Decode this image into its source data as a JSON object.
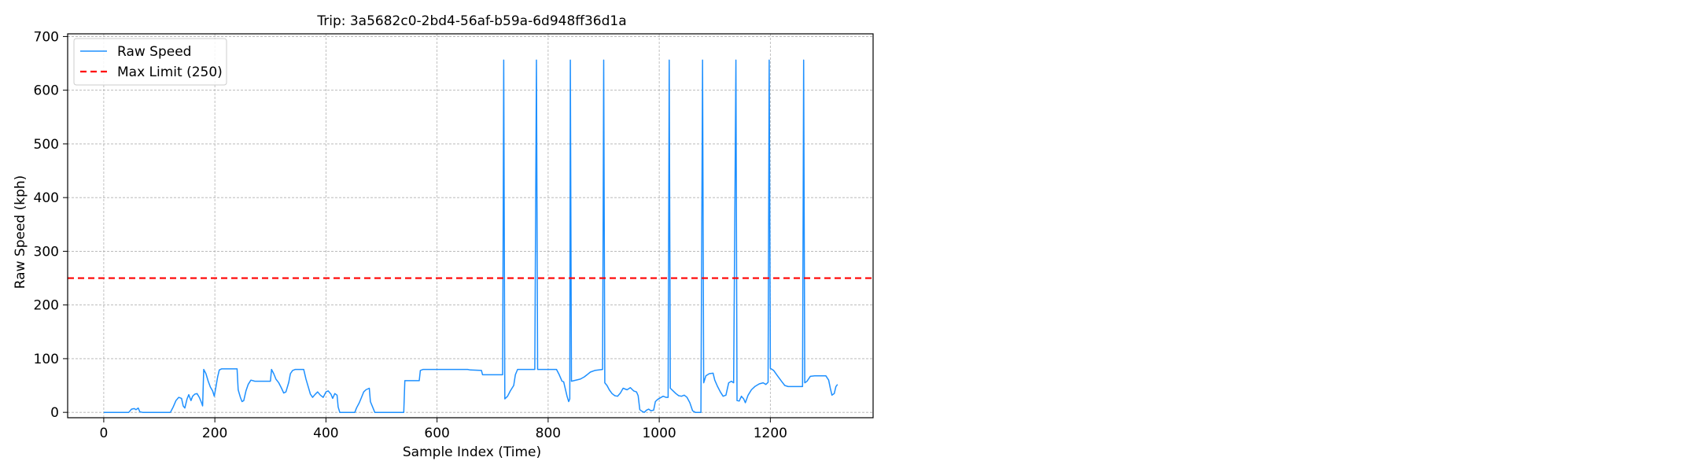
{
  "chart_data": {
    "type": "line",
    "title": "Trip: 3a5682c0-2bd4-56af-b59a-6d948ff36d1a",
    "xlabel": "Sample Index (Time)",
    "ylabel": "Raw Speed (kph)",
    "xlim": [
      -65,
      1385
    ],
    "ylim": [
      -10,
      705
    ],
    "xticks": [
      0,
      200,
      400,
      600,
      800,
      1000,
      1200
    ],
    "yticks": [
      0,
      100,
      200,
      300,
      400,
      500,
      600,
      700
    ],
    "grid": true,
    "legend_position": "top-left",
    "series": [
      {
        "name": "Raw Speed",
        "color": "#1e90ff",
        "style": "solid",
        "points": [
          [
            0,
            0
          ],
          [
            45,
            0
          ],
          [
            50,
            6
          ],
          [
            55,
            7
          ],
          [
            58,
            5
          ],
          [
            62,
            8
          ],
          [
            65,
            1
          ],
          [
            70,
            0
          ],
          [
            120,
            0
          ],
          [
            122,
            4
          ],
          [
            125,
            10
          ],
          [
            130,
            22
          ],
          [
            135,
            28
          ],
          [
            140,
            26
          ],
          [
            143,
            12
          ],
          [
            146,
            8
          ],
          [
            150,
            25
          ],
          [
            153,
            33
          ],
          [
            157,
            22
          ],
          [
            160,
            30
          ],
          [
            164,
            34
          ],
          [
            168,
            35
          ],
          [
            172,
            28
          ],
          [
            176,
            18
          ],
          [
            178,
            12
          ],
          [
            180,
            80
          ],
          [
            184,
            72
          ],
          [
            188,
            58
          ],
          [
            192,
            47
          ],
          [
            196,
            40
          ],
          [
            199,
            30
          ],
          [
            202,
            48
          ],
          [
            205,
            66
          ],
          [
            208,
            79
          ],
          [
            212,
            81
          ],
          [
            240,
            81
          ],
          [
            242,
            42
          ],
          [
            246,
            28
          ],
          [
            249,
            20
          ],
          [
            252,
            22
          ],
          [
            256,
            40
          ],
          [
            260,
            52
          ],
          [
            265,
            60
          ],
          [
            272,
            58
          ],
          [
            300,
            58
          ],
          [
            302,
            80
          ],
          [
            306,
            72
          ],
          [
            310,
            62
          ],
          [
            315,
            55
          ],
          [
            320,
            45
          ],
          [
            324,
            36
          ],
          [
            328,
            38
          ],
          [
            333,
            56
          ],
          [
            336,
            72
          ],
          [
            340,
            78
          ],
          [
            345,
            80
          ],
          [
            360,
            80
          ],
          [
            364,
            62
          ],
          [
            368,
            48
          ],
          [
            372,
            34
          ],
          [
            376,
            28
          ],
          [
            380,
            33
          ],
          [
            385,
            38
          ],
          [
            390,
            32
          ],
          [
            395,
            28
          ],
          [
            400,
            38
          ],
          [
            404,
            40
          ],
          [
            409,
            34
          ],
          [
            412,
            26
          ],
          [
            416,
            35
          ],
          [
            420,
            32
          ],
          [
            422,
            10
          ],
          [
            425,
            0
          ],
          [
            452,
            0
          ],
          [
            455,
            8
          ],
          [
            460,
            18
          ],
          [
            464,
            28
          ],
          [
            468,
            38
          ],
          [
            472,
            42
          ],
          [
            478,
            45
          ],
          [
            480,
            20
          ],
          [
            484,
            10
          ],
          [
            488,
            0
          ],
          [
            540,
            0
          ],
          [
            542,
            59
          ],
          [
            568,
            59
          ],
          [
            570,
            78
          ],
          [
            575,
            80
          ],
          [
            655,
            80
          ],
          [
            660,
            79
          ],
          [
            680,
            78
          ],
          [
            682,
            70
          ],
          [
            718,
            70
          ],
          [
            720,
            656
          ],
          [
            722,
            25
          ],
          [
            727,
            30
          ],
          [
            732,
            40
          ],
          [
            738,
            50
          ],
          [
            741,
            70
          ],
          [
            745,
            80
          ],
          [
            776,
            80
          ],
          [
            779,
            656
          ],
          [
            781,
            80
          ],
          [
            815,
            80
          ],
          [
            820,
            70
          ],
          [
            825,
            58
          ],
          [
            828,
            57
          ],
          [
            834,
            30
          ],
          [
            837,
            20
          ],
          [
            839,
            25
          ],
          [
            840,
            656
          ],
          [
            842,
            58
          ],
          [
            858,
            62
          ],
          [
            865,
            66
          ],
          [
            870,
            70
          ],
          [
            876,
            75
          ],
          [
            884,
            78
          ],
          [
            898,
            80
          ],
          [
            900,
            656
          ],
          [
            902,
            55
          ],
          [
            906,
            50
          ],
          [
            910,
            42
          ],
          [
            915,
            35
          ],
          [
            920,
            31
          ],
          [
            925,
            30
          ],
          [
            930,
            36
          ],
          [
            935,
            45
          ],
          [
            942,
            42
          ],
          [
            948,
            46
          ],
          [
            954,
            40
          ],
          [
            959,
            38
          ],
          [
            962,
            31
          ],
          [
            965,
            5
          ],
          [
            969,
            2
          ],
          [
            973,
            0
          ],
          [
            977,
            4
          ],
          [
            981,
            6
          ],
          [
            985,
            3
          ],
          [
            990,
            4
          ],
          [
            993,
            20
          ],
          [
            997,
            24
          ],
          [
            1002,
            27
          ],
          [
            1007,
            30
          ],
          [
            1012,
            28
          ],
          [
            1016,
            28
          ],
          [
            1018,
            656
          ],
          [
            1020,
            45
          ],
          [
            1025,
            40
          ],
          [
            1030,
            35
          ],
          [
            1035,
            31
          ],
          [
            1040,
            30
          ],
          [
            1045,
            32
          ],
          [
            1050,
            28
          ],
          [
            1055,
            18
          ],
          [
            1060,
            3
          ],
          [
            1065,
            0
          ],
          [
            1070,
            0
          ],
          [
            1075,
            0
          ],
          [
            1078,
            656
          ],
          [
            1080,
            55
          ],
          [
            1084,
            68
          ],
          [
            1090,
            72
          ],
          [
            1097,
            73
          ],
          [
            1100,
            60
          ],
          [
            1105,
            48
          ],
          [
            1110,
            38
          ],
          [
            1115,
            30
          ],
          [
            1120,
            32
          ],
          [
            1125,
            55
          ],
          [
            1130,
            58
          ],
          [
            1134,
            55
          ],
          [
            1138,
            656
          ],
          [
            1140,
            22
          ],
          [
            1144,
            21
          ],
          [
            1148,
            30
          ],
          [
            1152,
            25
          ],
          [
            1155,
            18
          ],
          [
            1160,
            32
          ],
          [
            1166,
            42
          ],
          [
            1172,
            48
          ],
          [
            1180,
            53
          ],
          [
            1187,
            55
          ],
          [
            1192,
            52
          ],
          [
            1196,
            56
          ],
          [
            1198,
            656
          ],
          [
            1200,
            82
          ],
          [
            1206,
            78
          ],
          [
            1213,
            68
          ],
          [
            1220,
            58
          ],
          [
            1226,
            50
          ],
          [
            1232,
            48
          ],
          [
            1258,
            48
          ],
          [
            1260,
            656
          ],
          [
            1262,
            55
          ],
          [
            1266,
            58
          ],
          [
            1272,
            67
          ],
          [
            1280,
            68
          ],
          [
            1300,
            68
          ],
          [
            1305,
            60
          ],
          [
            1308,
            45
          ],
          [
            1311,
            32
          ],
          [
            1315,
            35
          ],
          [
            1318,
            48
          ],
          [
            1321,
            52
          ]
        ]
      },
      {
        "name": "Max Limit (250)",
        "color": "#ff0000",
        "style": "dashed",
        "y": 250
      }
    ]
  }
}
